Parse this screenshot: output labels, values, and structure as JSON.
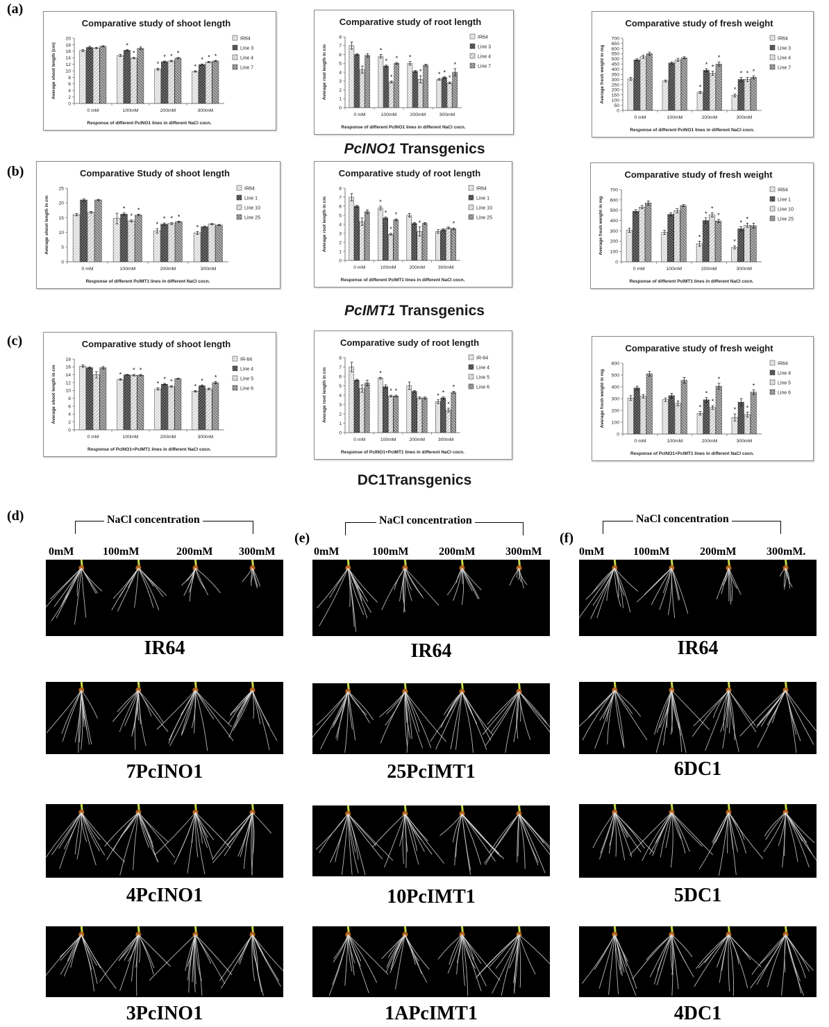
{
  "panel_labels": [
    "(a)",
    "(b)",
    "(c)",
    "(d)",
    "(e)",
    "(f)"
  ],
  "section_titles": {
    "a": {
      "italic": "PcINO1",
      "rest": " Transgenics"
    },
    "b": {
      "italic": "PcIMT1",
      "rest": " Transgenics"
    },
    "c": {
      "italic": "",
      "rest": "DC1Transgenics"
    }
  },
  "photo_section": {
    "nacl_label": "NaCl concentration",
    "concentrations_d": [
      "0mM",
      "100mM",
      "200mM",
      "300mM"
    ],
    "concentrations_e": [
      "0mM",
      "100mM",
      "200mM",
      "300mM"
    ],
    "concentrations_f": [
      "0mM",
      "100mM",
      "200mM",
      "300mM."
    ],
    "labels_d": [
      "IR64",
      "7PcINO1",
      "4PcINO1",
      "3PcINO1"
    ],
    "labels_e": [
      "IR64",
      "25PcIMT1",
      "10PcIMT1",
      "1APcIMT1"
    ],
    "labels_f": [
      "IR64",
      "6DC1",
      "5DC1",
      "4DC1"
    ]
  },
  "colors": {
    "ir64": "#f2f2f2",
    "line_a": "#7a7a7a",
    "line_b": "#e6e6e6",
    "line_c": "#b0b0b0",
    "axis": "#555555",
    "title": "#1a1a1a"
  },
  "chart_data": [
    {
      "id": "a1",
      "type": "bar",
      "title": "Comparative study of shoot length",
      "ylabel": "Average shoot length (cm)",
      "xlabel": "Response of different PcINO1 lines in different NaCl cocn.",
      "categories": [
        "0 mM",
        "100mM",
        "200mM",
        "300mM"
      ],
      "ylim": [
        0,
        20
      ],
      "yticks": [
        0,
        2,
        4,
        6,
        8,
        10,
        12,
        14,
        16,
        18,
        20
      ],
      "series": [
        {
          "name": "IR64",
          "values": [
            16.2,
            14.7,
            10.5,
            9.8
          ],
          "err": [
            0.3,
            0.3,
            0.3,
            0.2
          ],
          "star": [
            0,
            0,
            1,
            1
          ]
        },
        {
          "name": "Line 3",
          "values": [
            17.2,
            16.3,
            12.8,
            11.9
          ],
          "err": [
            0.3,
            0.2,
            0.2,
            0.2
          ],
          "star": [
            0,
            1,
            1,
            1
          ]
        },
        {
          "name": "Line 4",
          "values": [
            17.0,
            13.9,
            13.0,
            12.7
          ],
          "err": [
            0.2,
            0.2,
            0.2,
            0.2
          ],
          "star": [
            0,
            1,
            1,
            1
          ]
        },
        {
          "name": "Line 7",
          "values": [
            17.5,
            16.9,
            13.9,
            13.0
          ],
          "err": [
            0.2,
            0.4,
            0.2,
            0.2
          ],
          "star": [
            0,
            0,
            1,
            1
          ]
        }
      ]
    },
    {
      "id": "a2",
      "type": "bar",
      "title": "Comparative study of root length",
      "ylabel": "Average root length in cm",
      "xlabel": "Response of different PcINO1 lines in different NaCl cocn.",
      "categories": [
        "0 mM",
        "100mM",
        "200mM",
        "300mM"
      ],
      "ylim": [
        0,
        8
      ],
      "yticks": [
        0,
        1,
        2,
        3,
        4,
        5,
        6,
        7,
        8
      ],
      "series": [
        {
          "name": "IR64",
          "values": [
            7.0,
            5.8,
            5.0,
            3.2
          ],
          "err": [
            0.4,
            0.2,
            0.2,
            0.1
          ],
          "star": [
            0,
            1,
            1,
            1
          ]
        },
        {
          "name": "Line 3",
          "values": [
            6.0,
            4.7,
            4.1,
            3.4
          ],
          "err": [
            0.1,
            0.1,
            0.1,
            0.1
          ],
          "star": [
            0,
            1,
            0,
            1
          ]
        },
        {
          "name": "Line 4",
          "values": [
            4.3,
            2.9,
            3.2,
            2.8
          ],
          "err": [
            0.4,
            0.1,
            0.4,
            0.1
          ],
          "star": [
            0,
            1,
            1,
            1
          ]
        },
        {
          "name": "Line 7",
          "values": [
            5.9,
            5.0,
            4.8,
            4.0
          ],
          "err": [
            0.2,
            0.1,
            0.1,
            0.4
          ],
          "star": [
            0,
            1,
            0,
            1
          ]
        }
      ]
    },
    {
      "id": "a3",
      "type": "bar",
      "title": "Comparative study of fresh weight",
      "ylabel": "Average fresh weight in mg",
      "xlabel": "Response of different PcINO1 lines in different NaCl cocn.",
      "categories": [
        "0 mM",
        "100mM",
        "200mM",
        "300mM"
      ],
      "ylim": [
        0,
        700
      ],
      "yticks": [
        0,
        50,
        100,
        150,
        200,
        250,
        300,
        350,
        400,
        450,
        500,
        550,
        600,
        650,
        700
      ],
      "series": [
        {
          "name": "IR64",
          "values": [
            305,
            285,
            175,
            145
          ],
          "err": [
            15,
            10,
            10,
            15
          ],
          "star": [
            0,
            0,
            1,
            1
          ]
        },
        {
          "name": "Line 3",
          "values": [
            490,
            460,
            390,
            300
          ],
          "err": [
            10,
            10,
            15,
            20
          ],
          "star": [
            0,
            0,
            1,
            1
          ]
        },
        {
          "name": "Line 4",
          "values": [
            520,
            490,
            360,
            300
          ],
          "err": [
            15,
            15,
            20,
            20
          ],
          "star": [
            0,
            0,
            1,
            1
          ]
        },
        {
          "name": "Line 7",
          "values": [
            550,
            510,
            450,
            320
          ],
          "err": [
            15,
            10,
            20,
            15
          ],
          "star": [
            0,
            0,
            1,
            1
          ]
        }
      ]
    },
    {
      "id": "b1",
      "type": "bar",
      "title": "Comparative Study of shoot length",
      "ylabel": "Average shoot length in cm",
      "xlabel": "Response of different PcIMT1 lines in different NaCl cocn.",
      "categories": [
        "0 mM",
        "100mM",
        "200mM",
        "300mM"
      ],
      "ylim": [
        0,
        25
      ],
      "yticks": [
        0,
        5,
        10,
        15,
        20,
        25
      ],
      "series": [
        {
          "name": "IR64",
          "values": [
            16.0,
            14.7,
            10.5,
            9.8
          ],
          "err": [
            0.4,
            1.8,
            0.8,
            0.5
          ],
          "star": [
            0,
            0,
            1,
            1
          ]
        },
        {
          "name": "Line 1",
          "values": [
            21.0,
            16.2,
            12.8,
            11.9
          ],
          "err": [
            0.4,
            0.4,
            0.4,
            0.2
          ],
          "star": [
            0,
            1,
            1,
            0
          ]
        },
        {
          "name": "Line 10",
          "values": [
            16.8,
            13.9,
            13.0,
            12.8
          ],
          "err": [
            0.3,
            0.3,
            0.3,
            0.2
          ],
          "star": [
            0,
            1,
            1,
            0
          ]
        },
        {
          "name": "Line 25",
          "values": [
            21.0,
            15.9,
            13.6,
            12.5
          ],
          "err": [
            0.2,
            0.3,
            0.2,
            0.2
          ],
          "star": [
            0,
            1,
            1,
            0
          ]
        }
      ]
    },
    {
      "id": "b2",
      "type": "bar",
      "title": "Comparative study of root length",
      "ylabel": "Average root length in cm",
      "xlabel": "Response of different PcIMT1  lines in different NaCl cocn.",
      "categories": [
        "0 mM",
        "100mM",
        "200mM",
        "300mM"
      ],
      "ylim": [
        0,
        8
      ],
      "yticks": [
        0,
        1,
        2,
        3,
        4,
        5,
        6,
        7,
        8
      ],
      "series": [
        {
          "name": "IR64",
          "values": [
            7.0,
            5.8,
            5.0,
            3.2
          ],
          "err": [
            0.4,
            0.2,
            0.2,
            0.2
          ],
          "star": [
            0,
            1,
            0,
            0
          ]
        },
        {
          "name": "Line 1",
          "values": [
            6.0,
            4.7,
            4.1,
            3.4
          ],
          "err": [
            0.1,
            0.1,
            0.1,
            0.1
          ],
          "star": [
            0,
            1,
            0,
            0
          ]
        },
        {
          "name": "Line 10",
          "values": [
            4.3,
            2.9,
            3.2,
            3.6
          ],
          "err": [
            0.4,
            0.1,
            0.5,
            0.1
          ],
          "star": [
            0,
            1,
            1,
            0
          ]
        },
        {
          "name": "Line 25",
          "values": [
            5.4,
            4.5,
            4.1,
            3.5
          ],
          "err": [
            0.2,
            0.1,
            0.1,
            0.1
          ],
          "star": [
            0,
            1,
            0,
            1
          ]
        }
      ]
    },
    {
      "id": "b3",
      "type": "bar",
      "title": "Comparative study of fresh weight",
      "ylabel": "Average fresh weight in mg",
      "xlabel": "Response of different PcIMT1 lines in different NaCl cocn.",
      "categories": [
        "0 mM",
        "100mM",
        "200mM",
        "300mM"
      ],
      "ylim": [
        0,
        700
      ],
      "yticks": [
        0,
        100,
        200,
        300,
        400,
        500,
        600,
        700
      ],
      "series": [
        {
          "name": "IR64",
          "values": [
            305,
            285,
            175,
            140
          ],
          "err": [
            20,
            20,
            25,
            15
          ],
          "star": [
            0,
            0,
            1,
            1
          ]
        },
        {
          "name": "Line 1",
          "values": [
            490,
            460,
            400,
            320
          ],
          "err": [
            15,
            15,
            25,
            20
          ],
          "star": [
            0,
            0,
            1,
            1
          ]
        },
        {
          "name": "Line 10",
          "values": [
            530,
            495,
            455,
            355
          ],
          "err": [
            15,
            20,
            20,
            20
          ],
          "star": [
            0,
            0,
            1,
            1
          ]
        },
        {
          "name": "Line 25",
          "values": [
            570,
            545,
            395,
            350
          ],
          "err": [
            20,
            10,
            15,
            25
          ],
          "star": [
            0,
            0,
            1,
            0
          ]
        }
      ]
    },
    {
      "id": "c1",
      "type": "bar",
      "title": "Comparative study of shoot length",
      "ylabel": "Average shoot length in cm",
      "xlabel": "Response of PcINO1+PcIMT1 lines in different NaCl cocn.",
      "categories": [
        "0 mM",
        "100mM",
        "200mM",
        "300mM"
      ],
      "ylim": [
        0,
        18
      ],
      "yticks": [
        0,
        2,
        4,
        6,
        8,
        10,
        12,
        14,
        16,
        18
      ],
      "series": [
        {
          "name": "IR-64",
          "values": [
            16.2,
            12.8,
            10.4,
            9.8
          ],
          "err": [
            0.3,
            0.2,
            0.3,
            0.2
          ],
          "star": [
            0,
            1,
            1,
            1
          ]
        },
        {
          "name": "Line 4",
          "values": [
            15.8,
            14.0,
            11.6,
            11.2
          ],
          "err": [
            0.2,
            0.1,
            0.2,
            0.2
          ],
          "star": [
            0,
            0,
            1,
            1
          ]
        },
        {
          "name": "Line 5",
          "values": [
            14.0,
            13.9,
            11.0,
            10.4
          ],
          "err": [
            0.8,
            0.2,
            0.2,
            0.2
          ],
          "star": [
            0,
            1,
            1,
            0
          ]
        },
        {
          "name": "Line 6",
          "values": [
            15.8,
            13.9,
            13.0,
            12.0
          ],
          "err": [
            0.3,
            0.2,
            0.1,
            0.3
          ],
          "star": [
            0,
            1,
            0,
            1
          ]
        }
      ]
    },
    {
      "id": "c2",
      "type": "bar",
      "title": "Comparative sudy of root length",
      "ylabel": "Average root length in cm",
      "xlabel": "Response of PcINO1+PcIMT1 lines in different NaCl cocn.",
      "categories": [
        "0 mM",
        "100mM",
        "200mM",
        "300mM"
      ],
      "ylim": [
        0,
        8
      ],
      "yticks": [
        0,
        1,
        2,
        3,
        4,
        5,
        6,
        7,
        8
      ],
      "series": [
        {
          "name": "IR-64",
          "values": [
            7.0,
            5.8,
            5.0,
            3.3
          ],
          "err": [
            0.5,
            0.1,
            0.4,
            0.2
          ],
          "star": [
            0,
            1,
            0,
            1
          ]
        },
        {
          "name": "Line 4",
          "values": [
            5.6,
            4.9,
            4.4,
            3.7
          ],
          "err": [
            0.1,
            0.2,
            0.1,
            0.1
          ],
          "star": [
            0,
            0,
            0,
            1
          ]
        },
        {
          "name": "Line 5",
          "values": [
            4.7,
            3.9,
            3.7,
            2.4
          ],
          "err": [
            0.4,
            0.1,
            0.1,
            0.2
          ],
          "star": [
            0,
            1,
            0,
            1
          ]
        },
        {
          "name": "Line 6",
          "values": [
            5.3,
            3.9,
            3.7,
            4.3
          ],
          "err": [
            0.3,
            0.1,
            0.1,
            0.1
          ],
          "star": [
            0,
            1,
            0,
            1
          ]
        }
      ]
    },
    {
      "id": "c3",
      "type": "bar",
      "title": "Comparative study of fresh weight",
      "ylabel": "Average fresh weight in mg",
      "xlabel": "Response of PcINO1+PcIMT1 lines in different NaCl cocn.",
      "categories": [
        "0 mM",
        "100mM",
        "200mM",
        "300mM"
      ],
      "ylim": [
        0,
        600
      ],
      "yticks": [
        0,
        100,
        200,
        300,
        400,
        500,
        600
      ],
      "series": [
        {
          "name": "IR64",
          "values": [
            305,
            290,
            175,
            140
          ],
          "err": [
            20,
            15,
            15,
            30
          ],
          "star": [
            0,
            0,
            1,
            1
          ]
        },
        {
          "name": "Line 4",
          "values": [
            390,
            325,
            290,
            270
          ],
          "err": [
            15,
            20,
            20,
            30
          ],
          "star": [
            0,
            0,
            1,
            0
          ]
        },
        {
          "name": "Line 5",
          "values": [
            320,
            260,
            225,
            165
          ],
          "err": [
            15,
            20,
            15,
            20
          ],
          "star": [
            0,
            0,
            1,
            1
          ]
        },
        {
          "name": "Line 6",
          "values": [
            510,
            455,
            405,
            355
          ],
          "err": [
            20,
            25,
            25,
            20
          ],
          "star": [
            0,
            0,
            1,
            1
          ]
        }
      ]
    }
  ]
}
